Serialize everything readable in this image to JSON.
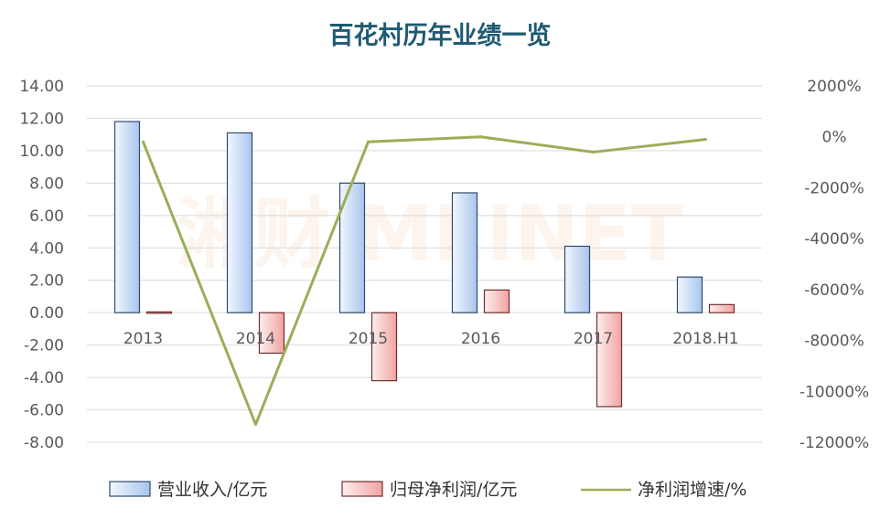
{
  "chart_data": {
    "type": "bar",
    "title": "百花村历年业绩一览",
    "categories": [
      "2013",
      "2014",
      "2015",
      "2016",
      "2017",
      "2018.H1"
    ],
    "series": [
      {
        "name": "营业收入/亿元",
        "type": "bar",
        "axis": "left",
        "values": [
          11.8,
          11.1,
          8.0,
          7.4,
          4.1,
          2.2
        ]
      },
      {
        "name": "归母净利润/亿元",
        "type": "bar",
        "axis": "left",
        "values": [
          0.05,
          -2.5,
          -4.2,
          1.4,
          -5.8,
          0.5
        ]
      },
      {
        "name": "净利润增速/%",
        "type": "line",
        "axis": "right",
        "values": [
          -200,
          -11300,
          -200,
          0,
          -600,
          -100
        ]
      }
    ],
    "y_left": {
      "ylim": [
        -8,
        14
      ],
      "ticks": [
        "14.00",
        "12.00",
        "10.00",
        "8.00",
        "6.00",
        "4.00",
        "2.00",
        "0.00",
        "-2.00",
        "-4.00",
        "-6.00",
        "-8.00"
      ]
    },
    "y_right": {
      "ylim": [
        -12000,
        2000
      ],
      "ticks": [
        "2000%",
        "0%",
        "-2000%",
        "-4000%",
        "-6000%",
        "-8000%",
        "-10000%",
        "-12000%"
      ]
    },
    "grid": true,
    "legend": "bottom",
    "watermark": "湘财 MEINET",
    "colors": {
      "bar_blue_light": "#e8f0fc",
      "bar_blue_dark": "#9dbde9",
      "bar_blue_edge": "#2f4a6e",
      "bar_red_light": "#fde3e3",
      "bar_red_dark": "#f3a3a3",
      "bar_red_edge": "#6e2f2f",
      "line": "#9aae57",
      "title": "#1f5a73",
      "grid": "#d9d9d9",
      "tick": "#595959"
    }
  }
}
